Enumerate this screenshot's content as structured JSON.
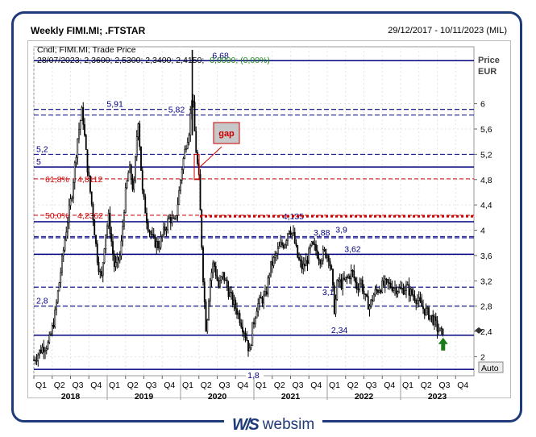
{
  "header": {
    "title": "Weekly FIMI.MI; .FTSTAR",
    "date_range": "29/12/2017 - 10/11/2023 (MIL)"
  },
  "legend": {
    "line1": "Cndl; FIMI.MI; Trade Price",
    "ohlc_prefix": "28/07/2023; 2,3600; 2,5300; 2,3400; 2,4150;",
    "change": "0,0000; (0,00%)"
  },
  "axis": {
    "y_title_1": "Price",
    "y_title_2": "EUR",
    "auto_button": "Auto"
  },
  "logo": {
    "mark": "W/S",
    "text": "websim"
  },
  "colors": {
    "candles": "#000000",
    "levels": "#000080",
    "fib": "#cc0000",
    "gap_box": "#c8c8c8",
    "arrow": "#1a7a1a",
    "frame": "#1f3a78"
  },
  "chart_data": {
    "type": "candlestick",
    "series_name": "FIMI.MI",
    "ylim": [
      1.7,
      6.9
    ],
    "yticks": [
      "2",
      "2,4",
      "2,8",
      "3,2",
      "3,6",
      "4",
      "4,4",
      "4,8",
      "5,2",
      "5,6",
      "6"
    ],
    "ytick_values": [
      2.0,
      2.4,
      2.8,
      3.2,
      3.6,
      4.0,
      4.4,
      4.8,
      5.2,
      5.6,
      6.0
    ],
    "quarters": [
      "Q1",
      "Q2",
      "Q3",
      "Q4",
      "Q1",
      "Q2",
      "Q3",
      "Q4",
      "Q1",
      "Q2",
      "Q3",
      "Q4",
      "Q1",
      "Q2",
      "Q3",
      "Q4",
      "Q1",
      "Q2",
      "Q3",
      "Q4",
      "Q1",
      "Q2",
      "Q3",
      "Q4"
    ],
    "years": [
      "2018",
      "2019",
      "2020",
      "2021",
      "2022",
      "2023"
    ],
    "price_path": [
      [
        2018.0,
        1.95
      ],
      [
        2018.12,
        2.15
      ],
      [
        2018.2,
        2.2
      ],
      [
        2018.28,
        2.6
      ],
      [
        2018.36,
        3.3
      ],
      [
        2018.44,
        4.0
      ],
      [
        2018.52,
        4.6
      ],
      [
        2018.6,
        5.5
      ],
      [
        2018.66,
        5.91
      ],
      [
        2018.72,
        5.1
      ],
      [
        2018.8,
        4.3
      ],
      [
        2018.86,
        3.6
      ],
      [
        2018.92,
        3.2
      ],
      [
        2018.97,
        3.9
      ],
      [
        2019.02,
        4.2
      ],
      [
        2019.1,
        3.4
      ],
      [
        2019.18,
        3.6
      ],
      [
        2019.24,
        4.5
      ],
      [
        2019.3,
        5.0
      ],
      [
        2019.36,
        4.6
      ],
      [
        2019.42,
        5.82
      ],
      [
        2019.48,
        4.6
      ],
      [
        2019.55,
        4.1
      ],
      [
        2019.62,
        3.85
      ],
      [
        2019.7,
        3.75
      ],
      [
        2019.78,
        4.0
      ],
      [
        2019.85,
        4.2
      ],
      [
        2019.92,
        4.1
      ],
      [
        2019.97,
        4.5
      ],
      [
        2020.02,
        5.0
      ],
      [
        2020.08,
        5.4
      ],
      [
        2020.12,
        5.6
      ],
      [
        2020.16,
        6.2
      ],
      [
        2020.2,
        5.4
      ],
      [
        2020.25,
        4.8
      ],
      [
        2020.28,
        4.0
      ],
      [
        2020.31,
        3.2
      ],
      [
        2020.35,
        2.4
      ],
      [
        2020.4,
        3.2
      ],
      [
        2020.45,
        3.5
      ],
      [
        2020.52,
        3.1
      ],
      [
        2020.58,
        3.3
      ],
      [
        2020.65,
        3.05
      ],
      [
        2020.72,
        2.85
      ],
      [
        2020.78,
        2.7
      ],
      [
        2020.84,
        2.5
      ],
      [
        2020.9,
        2.3
      ],
      [
        2020.94,
        2.05
      ],
      [
        2020.98,
        2.45
      ],
      [
        2021.04,
        2.8
      ],
      [
        2021.1,
        2.9
      ],
      [
        2021.16,
        2.95
      ],
      [
        2021.22,
        3.4
      ],
      [
        2021.3,
        3.6
      ],
      [
        2021.36,
        3.75
      ],
      [
        2021.42,
        3.8
      ],
      [
        2021.48,
        4.05
      ],
      [
        2021.54,
        3.9
      ],
      [
        2021.6,
        3.55
      ],
      [
        2021.66,
        3.4
      ],
      [
        2021.72,
        3.5
      ],
      [
        2021.78,
        3.75
      ],
      [
        2021.84,
        3.7
      ],
      [
        2021.9,
        3.55
      ],
      [
        2021.96,
        3.65
      ],
      [
        2022.02,
        3.6
      ],
      [
        2022.06,
        3.3
      ],
      [
        2022.1,
        2.7
      ],
      [
        2022.14,
        3.2
      ],
      [
        2022.2,
        3.15
      ],
      [
        2022.28,
        3.25
      ],
      [
        2022.34,
        3.35
      ],
      [
        2022.4,
        3.1
      ],
      [
        2022.46,
        3.2
      ],
      [
        2022.52,
        2.9
      ],
      [
        2022.58,
        2.8
      ],
      [
        2022.64,
        3.0
      ],
      [
        2022.72,
        3.1
      ],
      [
        2022.8,
        3.15
      ],
      [
        2022.88,
        3.12
      ],
      [
        2023.0,
        3.05
      ],
      [
        2023.08,
        3.1
      ],
      [
        2023.14,
        3.0
      ],
      [
        2023.2,
        2.95
      ],
      [
        2023.28,
        2.8
      ],
      [
        2023.36,
        2.7
      ],
      [
        2023.44,
        2.6
      ],
      [
        2023.5,
        2.45
      ],
      [
        2023.56,
        2.36
      ],
      [
        2023.58,
        2.42
      ]
    ],
    "horizontal_levels": [
      {
        "value": 6.68,
        "label": "6,68",
        "style": "solid"
      },
      {
        "value": 5.91,
        "label": "5,91",
        "style": "dashed"
      },
      {
        "value": 5.82,
        "label": "5,82",
        "style": "dashed"
      },
      {
        "value": 5.2,
        "label": "5,2",
        "style": "dashed"
      },
      {
        "value": 5.0,
        "label": "5",
        "style": "solid"
      },
      {
        "value": 4.135,
        "label": "4,135",
        "style": "solid"
      },
      {
        "value": 3.88,
        "label": "3,88",
        "style": "dashed"
      },
      {
        "value": 3.9,
        "label": "3,9",
        "style": "dashed"
      },
      {
        "value": 3.62,
        "label": "3,62",
        "style": "solid"
      },
      {
        "value": 3.1,
        "label": "3,1",
        "style": "dashed"
      },
      {
        "value": 2.8,
        "label": "2,8",
        "style": "dashed"
      },
      {
        "value": 2.34,
        "label": "2,34",
        "style": "solid"
      },
      {
        "value": 1.8,
        "label": "1,8",
        "style": "solid"
      }
    ],
    "fibonacci_levels": [
      {
        "value": 4.8112,
        "label": "61,8%",
        "value_label": "4,8112"
      },
      {
        "value": 4.2362,
        "label": "50,0%",
        "value_label": "4,2362"
      }
    ],
    "annotations": {
      "gap_label": "gap",
      "gap_from": 4.8,
      "gap_to": 5.2,
      "gap_level": 4.22,
      "last_price": 2.415
    }
  }
}
